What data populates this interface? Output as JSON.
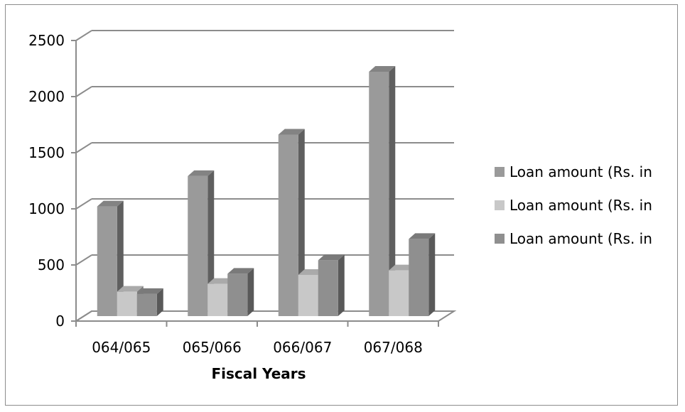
{
  "chart_data": {
    "type": "bar",
    "style": "3d-clustered-column",
    "categories": [
      "064/065",
      "065/066",
      "066/067",
      "067/068"
    ],
    "series": [
      {
        "name": "Loan amount (Rs. in",
        "values": [
          990,
          1260,
          1630,
          2190
        ],
        "color": "#9a9a9a"
      },
      {
        "name": "Loan amount (Rs. in",
        "values": [
          230,
          300,
          380,
          420
        ],
        "color": "#c8c8c8"
      },
      {
        "name": "Loan amount (Rs. in",
        "values": [
          210,
          390,
          510,
          700
        ],
        "color": "#8f8f8f"
      }
    ],
    "y_ticks": [
      "0",
      "500",
      "1000",
      "1500",
      "2000",
      "2500"
    ],
    "ylim": [
      0,
      2500
    ],
    "xlabel": "Fiscal Years",
    "ylabel": "",
    "title": "",
    "grid": true,
    "legend_position": "right"
  }
}
